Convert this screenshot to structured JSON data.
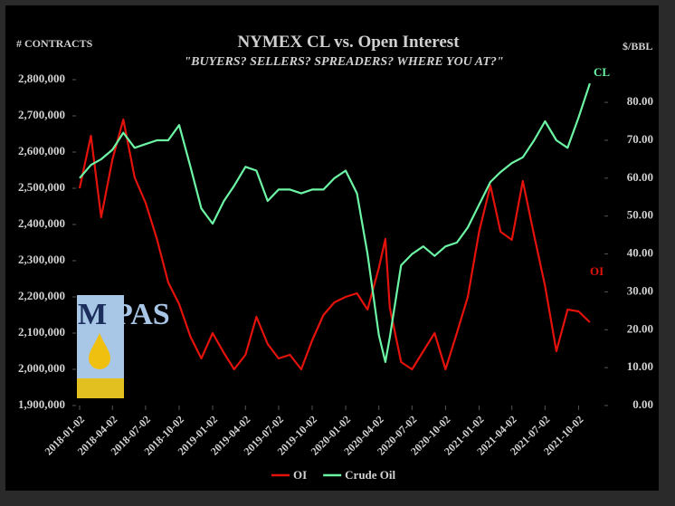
{
  "chart_data": {
    "type": "line",
    "title": "NYMEX CL vs. Open Interest",
    "subtitle": "\"BUYERS? SELLERS? SPREADERS? WHERE YOU AT?\"",
    "y_label": "# CONTRACTS",
    "y2_label": "$/BBL",
    "annotations": [
      "CL",
      "OI"
    ],
    "legend": "bottom",
    "x": [
      "2018-01-02",
      "2018-02-02",
      "2018-03-02",
      "2018-04-02",
      "2018-05-02",
      "2018-06-02",
      "2018-07-02",
      "2018-08-02",
      "2018-09-02",
      "2018-10-02",
      "2018-11-02",
      "2018-12-02",
      "2019-01-02",
      "2019-02-02",
      "2019-03-02",
      "2019-04-02",
      "2019-05-02",
      "2019-06-02",
      "2019-07-02",
      "2019-08-02",
      "2019-09-02",
      "2019-10-02",
      "2019-11-02",
      "2019-12-02",
      "2020-01-02",
      "2020-02-02",
      "2020-03-02",
      "2020-04-02",
      "2020-04-20",
      "2020-05-02",
      "2020-06-02",
      "2020-07-02",
      "2020-08-02",
      "2020-09-02",
      "2020-10-02",
      "2020-11-02",
      "2020-12-02",
      "2021-01-02",
      "2021-02-02",
      "2021-03-02",
      "2021-04-02",
      "2021-05-02",
      "2021-06-02",
      "2021-07-02",
      "2021-08-02",
      "2021-09-02",
      "2021-10-02",
      "2021-11-02"
    ],
    "xlim": [
      "2018-01-02",
      "2021-12-02"
    ],
    "xticks": [
      "2018-01-02",
      "2018-04-02",
      "2018-07-02",
      "2018-10-02",
      "2019-01-02",
      "2019-04-02",
      "2019-07-02",
      "2019-10-02",
      "2020-01-02",
      "2020-04-02",
      "2020-07-02",
      "2020-10-02",
      "2021-01-02",
      "2021-04-02",
      "2021-07-02",
      "2021-10-02"
    ],
    "ylim": [
      1900000,
      2800000
    ],
    "yticks": [
      {
        "value": 1900000,
        "label": "1,900,000"
      },
      {
        "value": 2000000,
        "label": "2,000,000"
      },
      {
        "value": 2100000,
        "label": "2,100,000"
      },
      {
        "value": 2200000,
        "label": "2,200,000"
      },
      {
        "value": 2300000,
        "label": "2,300,000"
      },
      {
        "value": 2400000,
        "label": "2,400,000"
      },
      {
        "value": 2500000,
        "label": "2,500,000"
      },
      {
        "value": 2600000,
        "label": "2,600,000"
      },
      {
        "value": 2700000,
        "label": "2,700,000"
      },
      {
        "value": 2800000,
        "label": "2,800,000"
      }
    ],
    "y2lim": [
      0,
      86
    ],
    "y2ticks": [
      {
        "value": 0,
        "label": "0.00"
      },
      {
        "value": 10,
        "label": "10.00"
      },
      {
        "value": 20,
        "label": "20.00"
      },
      {
        "value": 30,
        "label": "30.00"
      },
      {
        "value": 40,
        "label": "40.00"
      },
      {
        "value": 50,
        "label": "50.00"
      },
      {
        "value": 60,
        "label": "60.00"
      },
      {
        "value": 70,
        "label": "70.00"
      },
      {
        "value": 80,
        "label": "80.00"
      }
    ],
    "series": [
      {
        "name": "OI",
        "color": "#e3120b",
        "values": [
          2500000,
          2645000,
          2420000,
          2580000,
          2690000,
          2530000,
          2460000,
          2360000,
          2240000,
          2180000,
          2090000,
          2030000,
          2100000,
          2045000,
          2000000,
          2040000,
          2145000,
          2070000,
          2030000,
          2040000,
          2000000,
          2080000,
          2150000,
          2185000,
          2200000,
          2210000,
          2165000,
          2280000,
          2360000,
          2170000,
          2020000,
          2000000,
          2050000,
          2100000,
          2000000,
          2100000,
          2200000,
          2380000,
          2507500,
          2380000,
          2357500,
          2520000,
          2370000,
          2230000,
          2050000,
          2165000,
          2160000,
          2130000
        ]
      },
      {
        "name": "Crude Oil",
        "color": "#6cf5a5",
        "axis": "y2",
        "values": [
          60,
          63.5,
          65,
          67.5,
          72,
          68,
          69,
          70,
          70,
          74,
          63,
          52,
          48,
          54,
          58,
          63,
          62,
          54,
          57,
          57,
          56,
          57,
          57,
          60,
          62,
          56,
          40,
          18.6,
          11.5,
          18,
          37,
          40,
          42,
          39.5,
          42,
          43,
          47,
          53,
          59,
          61.6,
          64,
          65.5,
          70,
          75,
          70,
          68,
          76,
          85
        ]
      }
    ]
  },
  "logo": {
    "letter": "M",
    "text": "PAS"
  }
}
